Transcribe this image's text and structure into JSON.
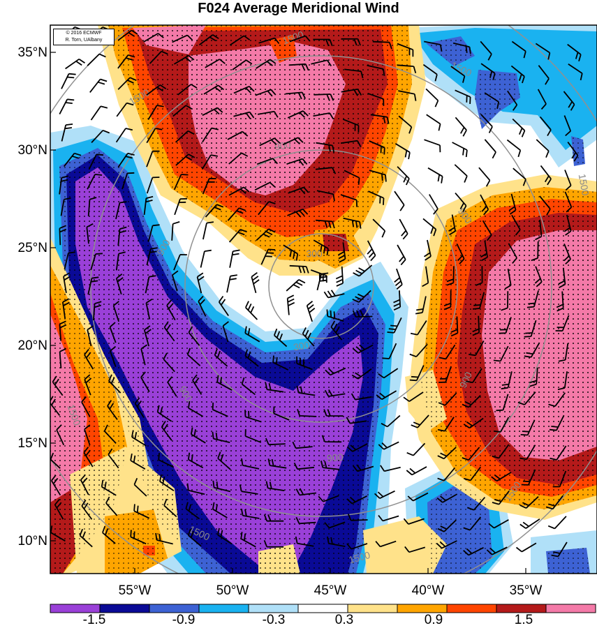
{
  "title": "F024 Average Meridional Wind",
  "credit": {
    "line1": "© 2016 ECMWF",
    "line2": "R. Torn, UAlbany"
  },
  "lat_labels": [
    "35°N",
    "30°N",
    "25°N",
    "20°N",
    "15°N",
    "10°N"
  ],
  "lon_labels": [
    "55°W",
    "50°W",
    "45°W",
    "40°W",
    "35°W"
  ],
  "contour_labels": [
    "1500",
    "1500",
    "1500",
    "900",
    "900",
    "900",
    "900",
    "300",
    "300",
    "900",
    "900",
    "1500",
    "1500",
    "1500",
    "1500",
    "1500"
  ],
  "colorbar": {
    "labels": [
      "-1.5",
      "-0.9",
      "-0.3",
      "0.3",
      "0.9",
      "1.5"
    ],
    "colors": [
      "#9a40d8",
      "#0a0a96",
      "#3d62d4",
      "#1ab2f0",
      "#b0e0f8",
      "#ffffff",
      "#ffe28a",
      "#ffa500",
      "#ff4500",
      "#b41a1a",
      "#f47aa8"
    ]
  },
  "palette": {
    "lt_blue": "#b0e0f8",
    "cyan": "#1ab2f0",
    "med_blue": "#3d62d4",
    "navy": "#0a0a96",
    "purple": "#9a40d8",
    "yellow": "#ffe28a",
    "orange": "#ffa500",
    "red_orange": "#ff4500",
    "dark_red": "#b41a1a",
    "pink": "#f47aa8"
  }
}
